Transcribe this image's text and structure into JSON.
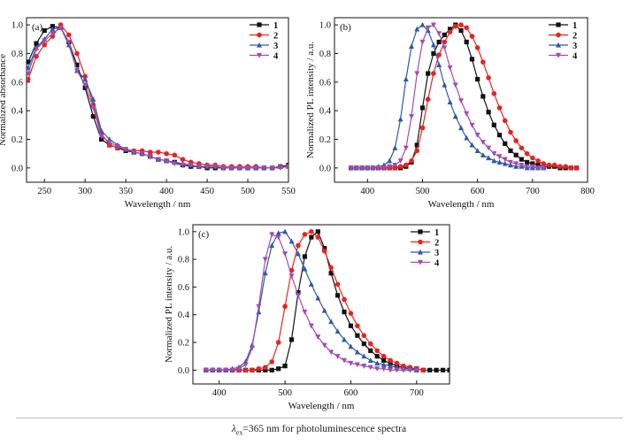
{
  "colors": {
    "1": "#111111",
    "2": "#e8231f",
    "3": "#2d5aa8",
    "4": "#a24bb2"
  },
  "markers": {
    "1": "square",
    "2": "circle",
    "3": "triangle-up",
    "4": "triangle-down"
  },
  "caption": {
    "lambda": "λ",
    "sub": "ex",
    "text": "=365 nm for photoluminescence spectra"
  },
  "chart_data": [
    {
      "type": "line",
      "panel_label": "(a)",
      "xlabel": "Wavelength / nm",
      "ylabel": "Normalized absorbance",
      "xlim": [
        228,
        550
      ],
      "ylim": [
        -0.1,
        1.05
      ],
      "xticks": [
        250,
        300,
        350,
        400,
        450,
        500,
        550
      ],
      "yticks": [
        0.0,
        0.2,
        0.4,
        0.6,
        0.8,
        1.0
      ],
      "legend_position": "top-right",
      "series": [
        {
          "name": "1",
          "x": [
            230,
            240,
            250,
            260,
            270,
            280,
            290,
            300,
            310,
            320,
            330,
            340,
            350,
            360,
            370,
            380,
            390,
            400,
            410,
            420,
            430,
            440,
            450,
            460,
            470,
            480,
            490,
            500,
            510,
            520,
            530,
            540,
            550
          ],
          "y": [
            0.74,
            0.87,
            0.96,
            0.99,
            0.98,
            0.88,
            0.72,
            0.56,
            0.36,
            0.2,
            0.16,
            0.14,
            0.12,
            0.11,
            0.1,
            0.08,
            0.06,
            0.05,
            0.04,
            0.02,
            0.01,
            0.01,
            0.0,
            0.0,
            0.0,
            0.0,
            0.0,
            0.0,
            0.0,
            0.0,
            0.0,
            0.01,
            0.02
          ]
        },
        {
          "name": "2",
          "x": [
            230,
            240,
            250,
            260,
            270,
            280,
            290,
            300,
            310,
            320,
            330,
            340,
            350,
            360,
            370,
            380,
            390,
            400,
            410,
            420,
            430,
            440,
            450,
            460,
            470,
            480,
            490,
            500,
            510,
            520,
            530,
            540,
            550
          ],
          "y": [
            0.62,
            0.78,
            0.86,
            0.92,
            1.0,
            0.93,
            0.8,
            0.64,
            0.44,
            0.24,
            0.16,
            0.14,
            0.13,
            0.12,
            0.12,
            0.11,
            0.11,
            0.1,
            0.09,
            0.06,
            0.04,
            0.03,
            0.02,
            0.02,
            0.01,
            0.01,
            0.01,
            0.01,
            0.01,
            0.0,
            0.0,
            0.01,
            0.01
          ]
        },
        {
          "name": "3",
          "x": [
            230,
            240,
            250,
            260,
            270,
            280,
            290,
            300,
            310,
            320,
            330,
            340,
            350,
            360,
            370,
            380,
            390,
            400,
            410,
            420,
            430,
            440,
            450,
            460,
            470,
            480,
            490,
            500,
            510,
            520,
            530,
            540,
            550
          ],
          "y": [
            0.7,
            0.84,
            0.9,
            0.97,
            0.98,
            0.86,
            0.68,
            0.62,
            0.48,
            0.26,
            0.2,
            0.16,
            0.13,
            0.11,
            0.1,
            0.08,
            0.06,
            0.05,
            0.04,
            0.03,
            0.02,
            0.01,
            0.01,
            0.01,
            0.0,
            0.0,
            0.0,
            0.0,
            0.0,
            0.0,
            0.0,
            0.01,
            0.01
          ]
        },
        {
          "name": "4",
          "x": [
            230,
            240,
            250,
            260,
            270,
            280,
            290,
            300,
            310,
            320,
            330,
            340,
            350,
            360,
            370,
            380,
            390,
            400,
            410,
            420,
            430,
            440,
            450,
            460,
            470,
            480,
            490,
            500,
            510,
            520,
            530,
            540,
            550
          ],
          "y": [
            0.66,
            0.83,
            0.89,
            0.94,
            0.98,
            0.88,
            0.68,
            0.58,
            0.42,
            0.22,
            0.18,
            0.15,
            0.13,
            0.11,
            0.1,
            0.08,
            0.06,
            0.05,
            0.03,
            0.02,
            0.02,
            0.01,
            0.01,
            0.01,
            0.0,
            0.0,
            0.0,
            0.0,
            0.0,
            0.0,
            0.0,
            0.0,
            0.01
          ]
        }
      ]
    },
    {
      "type": "line",
      "panel_label": "(b)",
      "xlabel": "Wavelength / nm",
      "ylabel": "Normalized PL intensity / a.u.",
      "xlim": [
        340,
        800
      ],
      "ylim": [
        -0.1,
        1.05
      ],
      "xticks": [
        400,
        500,
        600,
        700,
        800
      ],
      "yticks": [
        0.0,
        0.2,
        0.4,
        0.6,
        0.8,
        1.0
      ],
      "legend_position": "top-right",
      "series": [
        {
          "name": "1",
          "x": [
            370,
            380,
            390,
            400,
            410,
            420,
            430,
            440,
            450,
            460,
            470,
            480,
            490,
            500,
            510,
            520,
            530,
            540,
            550,
            560,
            570,
            580,
            590,
            600,
            610,
            620,
            630,
            640,
            650,
            660,
            670,
            680,
            690,
            700,
            710,
            720,
            730,
            740,
            750,
            760,
            770,
            780
          ],
          "y": [
            0,
            0,
            0,
            0,
            0,
            0,
            0,
            0,
            0,
            0,
            0.01,
            0.04,
            0.16,
            0.42,
            0.66,
            0.8,
            0.88,
            0.93,
            0.97,
            1.0,
            0.96,
            0.88,
            0.76,
            0.62,
            0.5,
            0.39,
            0.3,
            0.23,
            0.17,
            0.12,
            0.09,
            0.06,
            0.04,
            0.03,
            0.02,
            0.01,
            0.01,
            0.01,
            0,
            0,
            0,
            0
          ]
        },
        {
          "name": "2",
          "x": [
            370,
            380,
            390,
            400,
            410,
            420,
            430,
            440,
            450,
            460,
            470,
            480,
            490,
            500,
            510,
            520,
            530,
            540,
            550,
            560,
            570,
            580,
            590,
            600,
            610,
            620,
            630,
            640,
            650,
            660,
            670,
            680,
            690,
            700,
            710,
            720,
            730,
            740,
            750,
            760,
            770,
            780
          ],
          "y": [
            0,
            0,
            0,
            0,
            0,
            0,
            0,
            0,
            0,
            0.01,
            0.02,
            0.05,
            0.12,
            0.28,
            0.48,
            0.66,
            0.79,
            0.88,
            0.95,
            0.99,
            1.0,
            0.98,
            0.92,
            0.84,
            0.74,
            0.63,
            0.52,
            0.42,
            0.33,
            0.25,
            0.19,
            0.14,
            0.1,
            0.07,
            0.05,
            0.03,
            0.02,
            0.02,
            0.01,
            0.01,
            0,
            0
          ]
        },
        {
          "name": "3",
          "x": [
            370,
            380,
            390,
            400,
            410,
            420,
            430,
            440,
            450,
            460,
            470,
            480,
            490,
            500,
            510,
            520,
            530,
            540,
            550,
            560,
            570,
            580,
            590,
            600,
            610,
            620,
            630,
            640,
            650,
            660,
            670,
            680,
            690,
            700,
            710,
            720
          ],
          "y": [
            0,
            0,
            0,
            0,
            0,
            0.01,
            0.02,
            0.05,
            0.14,
            0.34,
            0.62,
            0.85,
            0.97,
            1.0,
            0.96,
            0.86,
            0.72,
            0.58,
            0.46,
            0.36,
            0.28,
            0.21,
            0.16,
            0.12,
            0.09,
            0.07,
            0.05,
            0.04,
            0.03,
            0.02,
            0.01,
            0.01,
            0,
            0,
            0,
            0
          ]
        },
        {
          "name": "4",
          "x": [
            370,
            380,
            390,
            400,
            410,
            420,
            430,
            440,
            450,
            460,
            470,
            480,
            490,
            500,
            510,
            520,
            530,
            540,
            550,
            560,
            570,
            580,
            590,
            600,
            610,
            620,
            630,
            640,
            650,
            660,
            670,
            680,
            690,
            700,
            710,
            720
          ],
          "y": [
            0,
            0,
            0,
            0,
            0,
            0,
            0,
            0.01,
            0.02,
            0.05,
            0.14,
            0.36,
            0.66,
            0.88,
            0.98,
            1.0,
            0.94,
            0.84,
            0.7,
            0.58,
            0.47,
            0.38,
            0.3,
            0.23,
            0.18,
            0.14,
            0.1,
            0.08,
            0.06,
            0.04,
            0.03,
            0.02,
            0.01,
            0.01,
            0,
            0
          ]
        }
      ]
    },
    {
      "type": "line",
      "panel_label": "(c)",
      "xlabel": "Wavelength / nm",
      "ylabel": "Normalized PL intensity / a.u.",
      "xlim": [
        360,
        750
      ],
      "ylim": [
        -0.1,
        1.05
      ],
      "xticks": [
        400,
        500,
        600,
        700
      ],
      "yticks": [
        0.0,
        0.2,
        0.4,
        0.6,
        0.8,
        1.0
      ],
      "legend_position": "top-right",
      "series": [
        {
          "name": "1",
          "x": [
            380,
            390,
            400,
            410,
            420,
            430,
            440,
            450,
            460,
            470,
            480,
            490,
            500,
            510,
            520,
            530,
            540,
            550,
            560,
            570,
            580,
            590,
            600,
            610,
            620,
            630,
            640,
            650,
            660,
            670,
            680,
            690,
            700,
            710,
            720,
            730,
            740,
            750
          ],
          "y": [
            0,
            0,
            0,
            0,
            0,
            0,
            0,
            0,
            0,
            0,
            0,
            0.01,
            0.03,
            0.22,
            0.56,
            0.82,
            0.96,
            1.0,
            0.88,
            0.7,
            0.54,
            0.42,
            0.32,
            0.25,
            0.19,
            0.14,
            0.1,
            0.07,
            0.05,
            0.03,
            0.02,
            0.01,
            0.01,
            0,
            0,
            0,
            0,
            0
          ]
        },
        {
          "name": "2",
          "x": [
            380,
            390,
            400,
            410,
            420,
            430,
            440,
            450,
            460,
            470,
            480,
            490,
            500,
            510,
            520,
            530,
            540,
            550,
            560,
            570,
            580,
            590,
            600,
            610,
            620,
            630,
            640,
            650,
            660,
            670,
            680,
            690,
            700,
            710
          ],
          "y": [
            0,
            0,
            0,
            0,
            0,
            0,
            0,
            0,
            0.01,
            0.02,
            0.06,
            0.2,
            0.46,
            0.72,
            0.9,
            0.98,
            1.0,
            0.96,
            0.86,
            0.74,
            0.62,
            0.51,
            0.41,
            0.32,
            0.25,
            0.19,
            0.14,
            0.1,
            0.07,
            0.05,
            0.03,
            0.02,
            0.01,
            0
          ]
        },
        {
          "name": "3",
          "x": [
            380,
            390,
            400,
            410,
            420,
            430,
            440,
            450,
            460,
            470,
            480,
            490,
            500,
            510,
            520,
            530,
            540,
            550,
            560,
            570,
            580,
            590,
            600,
            610,
            620,
            630,
            640,
            650,
            660,
            670,
            680,
            690,
            700
          ],
          "y": [
            0,
            0,
            0,
            0,
            0.01,
            0.02,
            0.06,
            0.18,
            0.42,
            0.7,
            0.9,
            0.99,
            1.0,
            0.93,
            0.84,
            0.73,
            0.62,
            0.52,
            0.43,
            0.35,
            0.28,
            0.22,
            0.17,
            0.13,
            0.1,
            0.07,
            0.05,
            0.04,
            0.03,
            0.02,
            0.01,
            0.01,
            0
          ]
        },
        {
          "name": "4",
          "x": [
            380,
            390,
            400,
            410,
            420,
            430,
            440,
            450,
            460,
            470,
            480,
            490,
            500,
            510,
            520,
            530,
            540,
            550,
            560,
            570,
            580,
            590,
            600,
            610,
            620,
            630,
            640,
            650,
            660,
            670,
            680,
            690,
            700
          ],
          "y": [
            0,
            0,
            0,
            0,
            0,
            0.01,
            0.04,
            0.16,
            0.46,
            0.8,
            0.98,
            0.96,
            0.84,
            0.68,
            0.54,
            0.42,
            0.32,
            0.24,
            0.18,
            0.13,
            0.1,
            0.07,
            0.05,
            0.04,
            0.03,
            0.02,
            0.01,
            0.01,
            0,
            0,
            0,
            0,
            0
          ]
        }
      ]
    }
  ]
}
